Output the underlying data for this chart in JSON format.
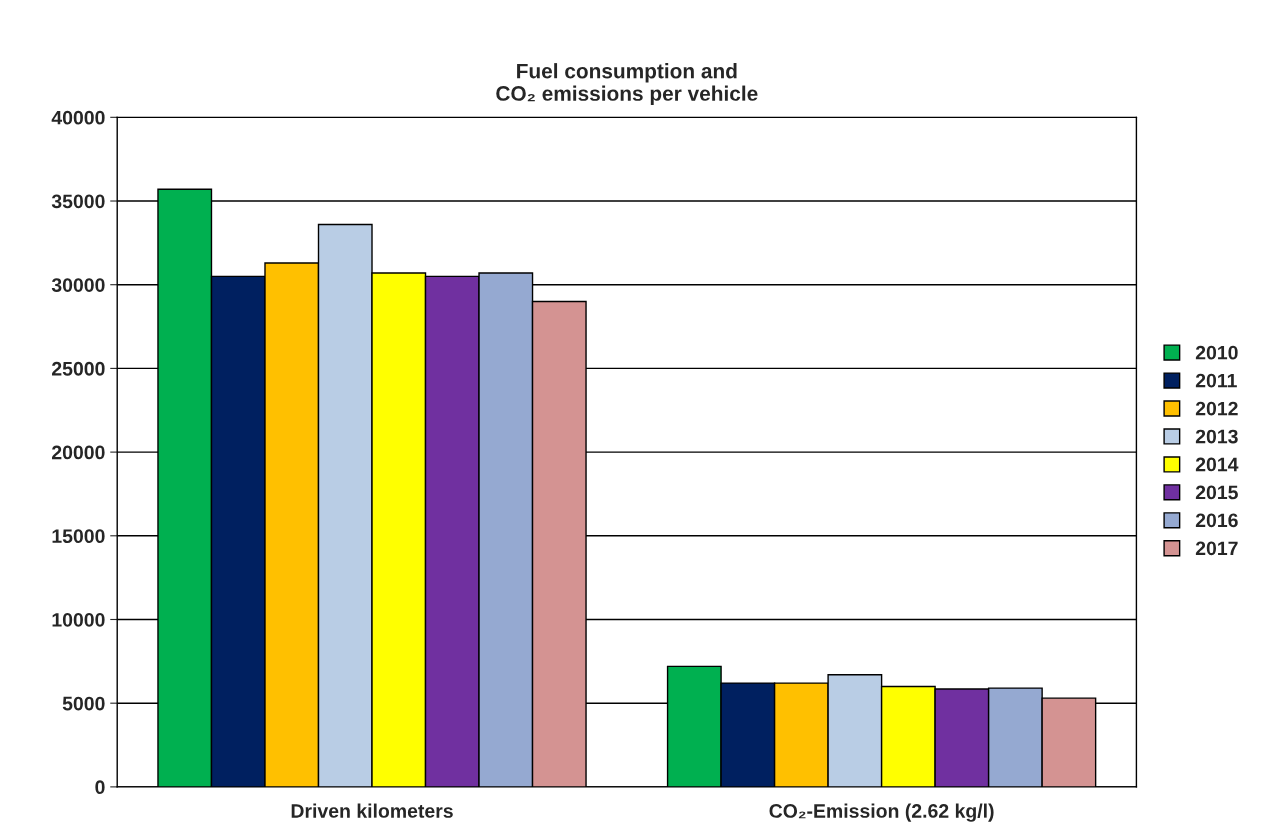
{
  "chart_data": {
    "type": "bar",
    "title": "Fuel consumption and\nCO₂ emissions per vehicle",
    "categories": [
      "Driven kilometers",
      "CO₂-Emission (2.62 kg/l)"
    ],
    "series": [
      {
        "name": "2010",
        "color": "#00b050",
        "values": [
          35700,
          7200
        ]
      },
      {
        "name": "2011",
        "color": "#002060",
        "values": [
          30500,
          6200
        ]
      },
      {
        "name": "2012",
        "color": "#ffc000",
        "values": [
          31300,
          6200
        ]
      },
      {
        "name": "2013",
        "color": "#b9cde5",
        "values": [
          33600,
          6700
        ]
      },
      {
        "name": "2014",
        "color": "#ffff00",
        "values": [
          30700,
          6000
        ]
      },
      {
        "name": "2015",
        "color": "#7030a0",
        "values": [
          30500,
          5850
        ]
      },
      {
        "name": "2016",
        "color": "#95a9d1",
        "values": [
          30700,
          5900
        ]
      },
      {
        "name": "2017",
        "color": "#d49392",
        "values": [
          29000,
          5300
        ]
      }
    ],
    "ylim": [
      0,
      40000
    ],
    "yticks": [
      0,
      5000,
      10000,
      15000,
      20000,
      25000,
      30000,
      35000,
      40000
    ],
    "grid": "y",
    "legend": "right"
  }
}
